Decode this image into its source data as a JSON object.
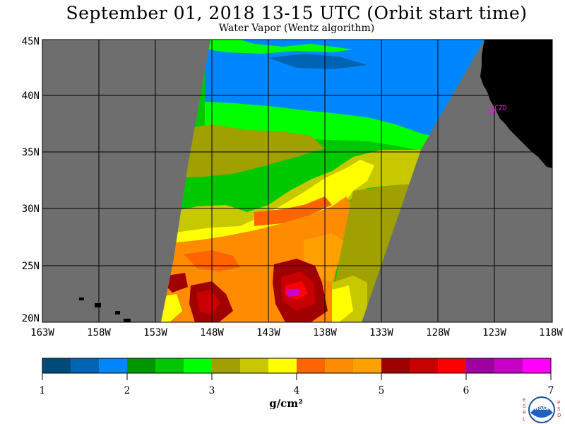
{
  "header": {
    "title": "September 01, 2018  13-15 UTC  (Orbit start time)",
    "subtitle": "Water Vapor (Wentz algorithm)"
  },
  "map": {
    "lat_labels": [
      "45N",
      "40N",
      "35N",
      "30N",
      "25N",
      "20N"
    ],
    "lon_labels": [
      "163W",
      "158W",
      "153W",
      "148W",
      "143W",
      "138W",
      "133W",
      "128W",
      "123W",
      "118W"
    ],
    "station_label": "CZD",
    "colors": {
      "ocean_nodata": "#6e6e6e",
      "land": "#000000",
      "station": "#ff00ff"
    }
  },
  "colorbar": {
    "labels": [
      "1",
      "2",
      "3",
      "4",
      "5",
      "6",
      "7"
    ],
    "units": "g/cm²",
    "colors": [
      "#004a78",
      "#0064b4",
      "#0087ff",
      "#009600",
      "#00c800",
      "#00ff00",
      "#a0a000",
      "#c8c800",
      "#ffff00",
      "#ff6400",
      "#ff8c00",
      "#ffa000",
      "#a00000",
      "#c80000",
      "#ff0000",
      "#a000a0",
      "#c800c8",
      "#ff00ff"
    ]
  },
  "logo": {
    "letters_left": [
      "E",
      "S",
      "R",
      "L"
    ],
    "letters_right": [
      "P",
      "S",
      "D"
    ],
    "text": "NOAA"
  }
}
